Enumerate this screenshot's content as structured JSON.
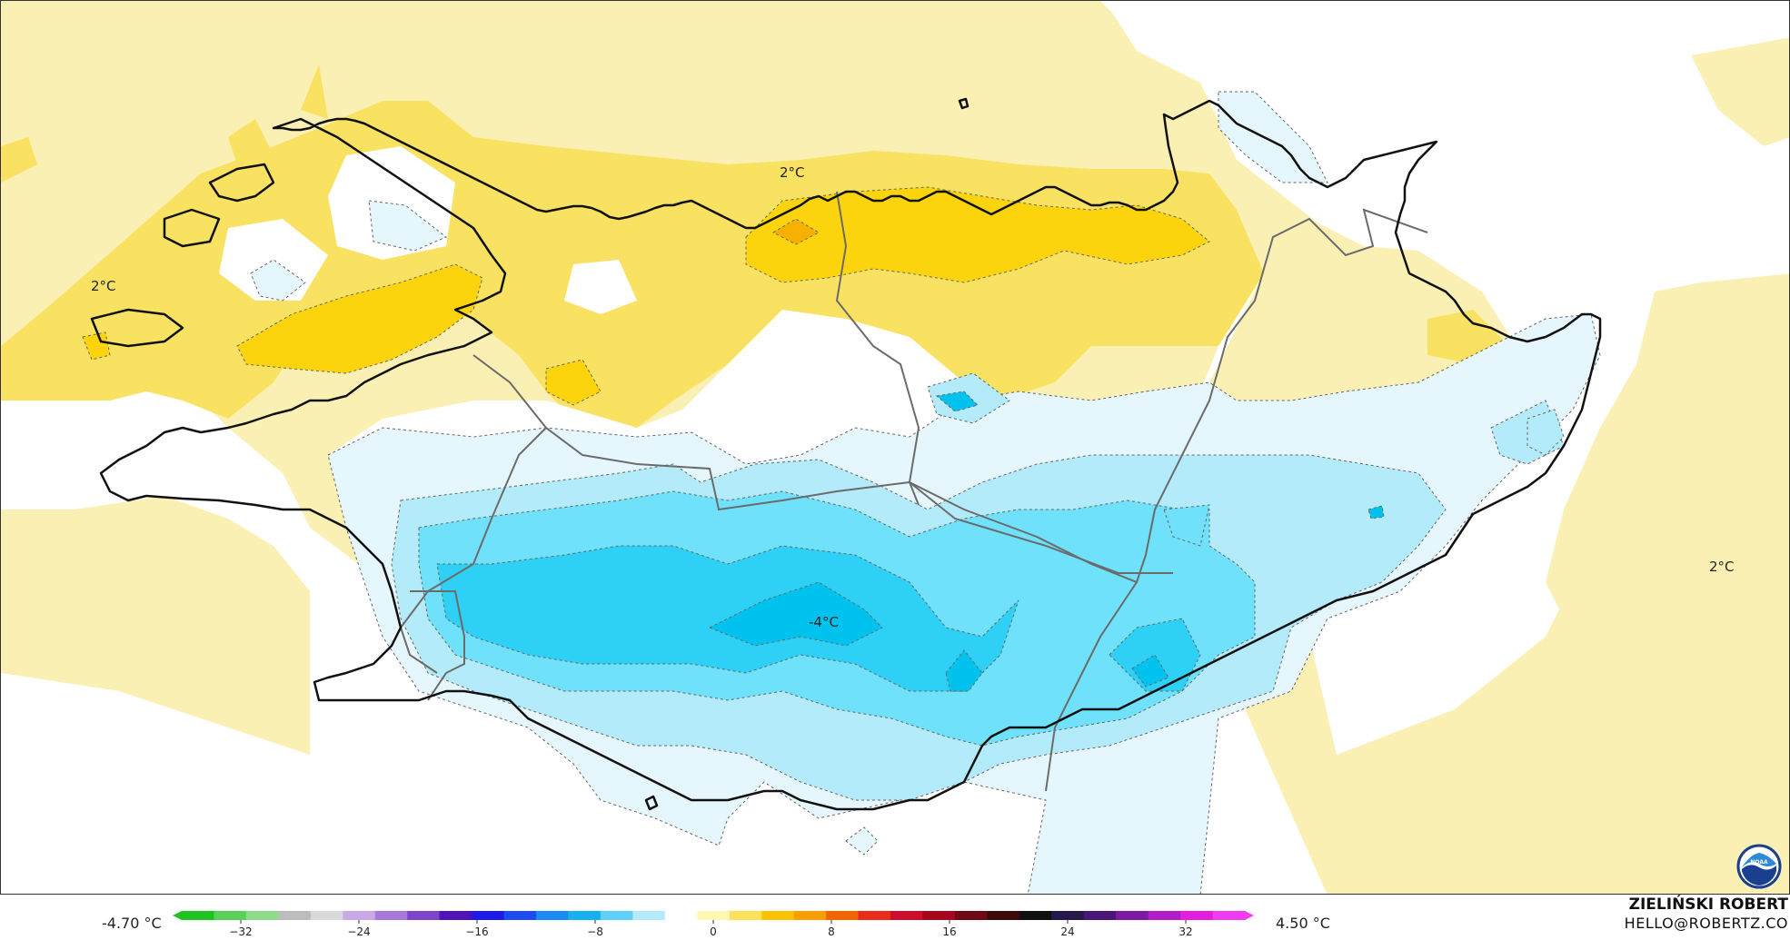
{
  "map": {
    "labels": [
      {
        "text": "2°C",
        "name": "contour-label-north"
      },
      {
        "text": "2°C",
        "name": "contour-label-west"
      },
      {
        "text": "2°C",
        "name": "contour-label-east"
      },
      {
        "text": "-4°C",
        "name": "contour-label-south-interior"
      }
    ],
    "colors": {
      "warm_light": "#fbf0b3",
      "warm_mid": "#f9e161",
      "warm_strong": "#fcd40d",
      "warm_deep": "#f6b000",
      "cold_pale": "#e6f6fd",
      "cold_light": "#b4ebfa",
      "cold_mid": "#6fe1fa",
      "cold_strong": "#2fd0f5",
      "cold_deep": "#00c2ee",
      "coast": "#111111",
      "border": "#6b6b6b"
    }
  },
  "legend": {
    "min_label": "-4.70 °C",
    "max_label": "4.50 °C",
    "ticks": [
      "−32",
      "−24",
      "−16",
      "−8",
      "0",
      "8",
      "16",
      "24",
      "32"
    ],
    "tick_values": [
      -32,
      -24,
      -16,
      -8,
      0,
      8,
      16,
      24,
      32
    ],
    "range": [
      -36,
      36
    ],
    "palette": [
      "#1fc41f",
      "#57d157",
      "#8edb8e",
      "#bcbcbc",
      "#d9d9d9",
      "#c9a9e6",
      "#a77ad9",
      "#7d46c9",
      "#5013b8",
      "#1c1ce6",
      "#1e4bf0",
      "#1a8af2",
      "#17b1f2",
      "#5fd0fa",
      "#b4ebfa",
      "#ffffff",
      "#fff7b0",
      "#fce25a",
      "#fcc400",
      "#f99d00",
      "#f26400",
      "#ea2a1a",
      "#cf0c2c",
      "#a8061e",
      "#6e0a16",
      "#3c0a0a",
      "#101010",
      "#26184a",
      "#4b1777",
      "#7c1aa3",
      "#b01cc8",
      "#e21fe0",
      "#f03cf0"
    ]
  },
  "credit": {
    "name": "ZIELIŃSKI ROBERT",
    "email": "HELLO@ROBERTZ.CO"
  },
  "logo": {
    "text": "NOAA",
    "icon": "noaa-logo-icon"
  }
}
